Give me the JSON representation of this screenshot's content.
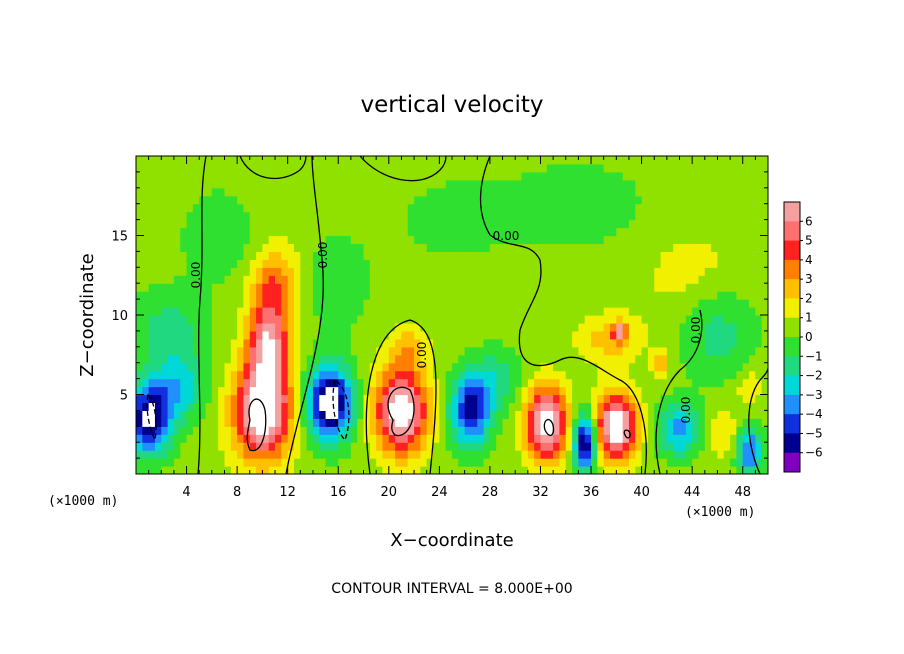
{
  "chart_data": {
    "type": "heatmap",
    "title": "vertical velocity",
    "xlabel": "X−coordinate",
    "ylabel": "Z−coordinate",
    "x_unit_left": "(×1000 m)",
    "x_unit_right": "(×1000 m)",
    "xlim": [
      0,
      50
    ],
    "ylim": [
      0,
      20
    ],
    "x_ticks": [
      4,
      8,
      12,
      16,
      20,
      24,
      28,
      32,
      36,
      40,
      44,
      48
    ],
    "y_ticks": [
      5,
      10,
      15
    ],
    "colorbar": {
      "ticks": [
        "6",
        "5",
        "4",
        "3",
        "2",
        "1",
        "0",
        "−1",
        "−2",
        "−3",
        "−4",
        "−5",
        "−6"
      ],
      "colors": [
        "#f5a0a0",
        "#ff7070",
        "#ff2020",
        "#ff8000",
        "#ffc000",
        "#f0f000",
        "#90e000",
        "#30e030",
        "#20d880",
        "#00d8d8",
        "#2090ff",
        "#1030e0",
        "#000090",
        "#8000c0"
      ]
    },
    "contour_label": "0.00",
    "contour_interval_note": "CONTOUR INTERVAL = 8.000E+00",
    "field": {
      "background": "#40e040",
      "cells": [
        {
          "x": 1.0,
          "z": 3.5,
          "sx": 1.8,
          "sz": 2.2,
          "a": -7
        },
        {
          "x": 2.5,
          "z": 9.0,
          "sx": 3.0,
          "sz": 2.5,
          "a": -2
        },
        {
          "x": 3.5,
          "z": 5.5,
          "sx": 2.0,
          "sz": 2.0,
          "a": -3
        },
        {
          "x": 10.0,
          "z": 4.0,
          "sx": 2.2,
          "sz": 3.0,
          "a": 8
        },
        {
          "x": 10.5,
          "z": 8.5,
          "sx": 1.6,
          "sz": 3.0,
          "a": 6
        },
        {
          "x": 11.0,
          "z": 12.5,
          "sx": 1.8,
          "sz": 2.0,
          "a": 2.5
        },
        {
          "x": 15.3,
          "z": 4.5,
          "sx": 1.8,
          "sz": 2.3,
          "a": -8
        },
        {
          "x": 6.5,
          "z": 15.0,
          "sx": 3.0,
          "sz": 3.0,
          "a": -1.2
        },
        {
          "x": 21.0,
          "z": 4.0,
          "sx": 2.0,
          "sz": 2.6,
          "a": 8
        },
        {
          "x": 21.5,
          "z": 8.0,
          "sx": 1.5,
          "sz": 1.2,
          "a": 2
        },
        {
          "x": 26.5,
          "z": 4.0,
          "sx": 1.6,
          "sz": 2.2,
          "a": -6
        },
        {
          "x": 28.5,
          "z": 6.0,
          "sx": 2.0,
          "sz": 2.0,
          "a": -2
        },
        {
          "x": 32.5,
          "z": 3.2,
          "sx": 1.6,
          "sz": 2.2,
          "a": 8
        },
        {
          "x": 35.5,
          "z": 2.0,
          "sx": 0.9,
          "sz": 1.8,
          "a": -7
        },
        {
          "x": 38.0,
          "z": 3.0,
          "sx": 1.6,
          "sz": 2.0,
          "a": 8
        },
        {
          "x": 37.5,
          "z": 8.5,
          "sx": 2.5,
          "sz": 1.5,
          "a": 2
        },
        {
          "x": 38.2,
          "z": 9.0,
          "sx": 0.5,
          "sz": 0.6,
          "a": 5
        },
        {
          "x": 43.0,
          "z": 2.8,
          "sx": 1.8,
          "sz": 1.6,
          "a": -4
        },
        {
          "x": 41.5,
          "z": 7.0,
          "sx": 0.6,
          "sz": 0.8,
          "a": 3
        },
        {
          "x": 46.5,
          "z": 2.5,
          "sx": 1.5,
          "sz": 1.5,
          "a": 1.5
        },
        {
          "x": 48.5,
          "z": 1.5,
          "sx": 1.0,
          "sz": 1.5,
          "a": -5
        },
        {
          "x": 48.5,
          "z": 5.5,
          "sx": 1.0,
          "sz": 1.2,
          "a": 1.5
        },
        {
          "x": 44.0,
          "z": 12.5,
          "sx": 4.0,
          "sz": 3.0,
          "a": 1
        },
        {
          "x": 35.0,
          "z": 17.0,
          "sx": 6.0,
          "sz": 3.0,
          "a": -1
        },
        {
          "x": 25.0,
          "z": 16.0,
          "sx": 5.0,
          "sz": 3.0,
          "a": -0.8
        },
        {
          "x": 16.0,
          "z": 12.0,
          "sx": 2.5,
          "sz": 3.0,
          "a": -1.3
        },
        {
          "x": 46.0,
          "z": 9.0,
          "sx": 3.0,
          "sz": 3.0,
          "a": -2
        }
      ]
    }
  }
}
